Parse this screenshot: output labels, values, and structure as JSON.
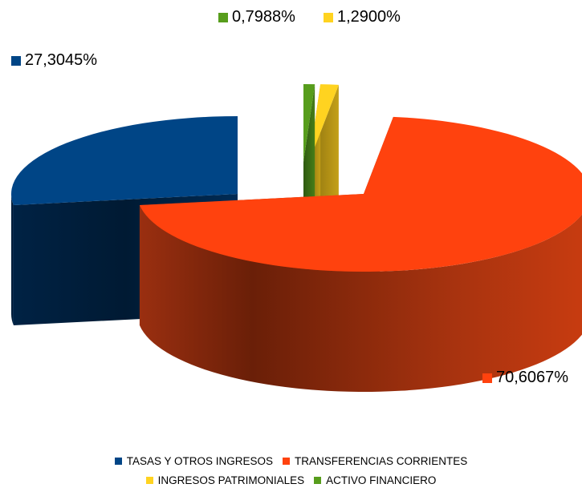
{
  "chart_data": {
    "type": "pie",
    "style": "3d-exploded",
    "slices": [
      {
        "name": "TASAS Y OTROS INGRESOS",
        "value": 27.3045,
        "label": "27,3045%",
        "color": "#004586"
      },
      {
        "name": "TRANSFERENCIAS CORRIENTES",
        "value": 70.6067,
        "label": "70,6067%",
        "color": "#ff420e"
      },
      {
        "name": "INGRESOS PATRIMONIALES",
        "value": 1.29,
        "label": "1,2900%",
        "color": "#ffd320"
      },
      {
        "name": "ACTIVO FINANCIERO",
        "value": 0.7988,
        "label": "0,7988%",
        "color": "#579d1c"
      }
    ],
    "legend": {
      "position": "bottom"
    }
  }
}
